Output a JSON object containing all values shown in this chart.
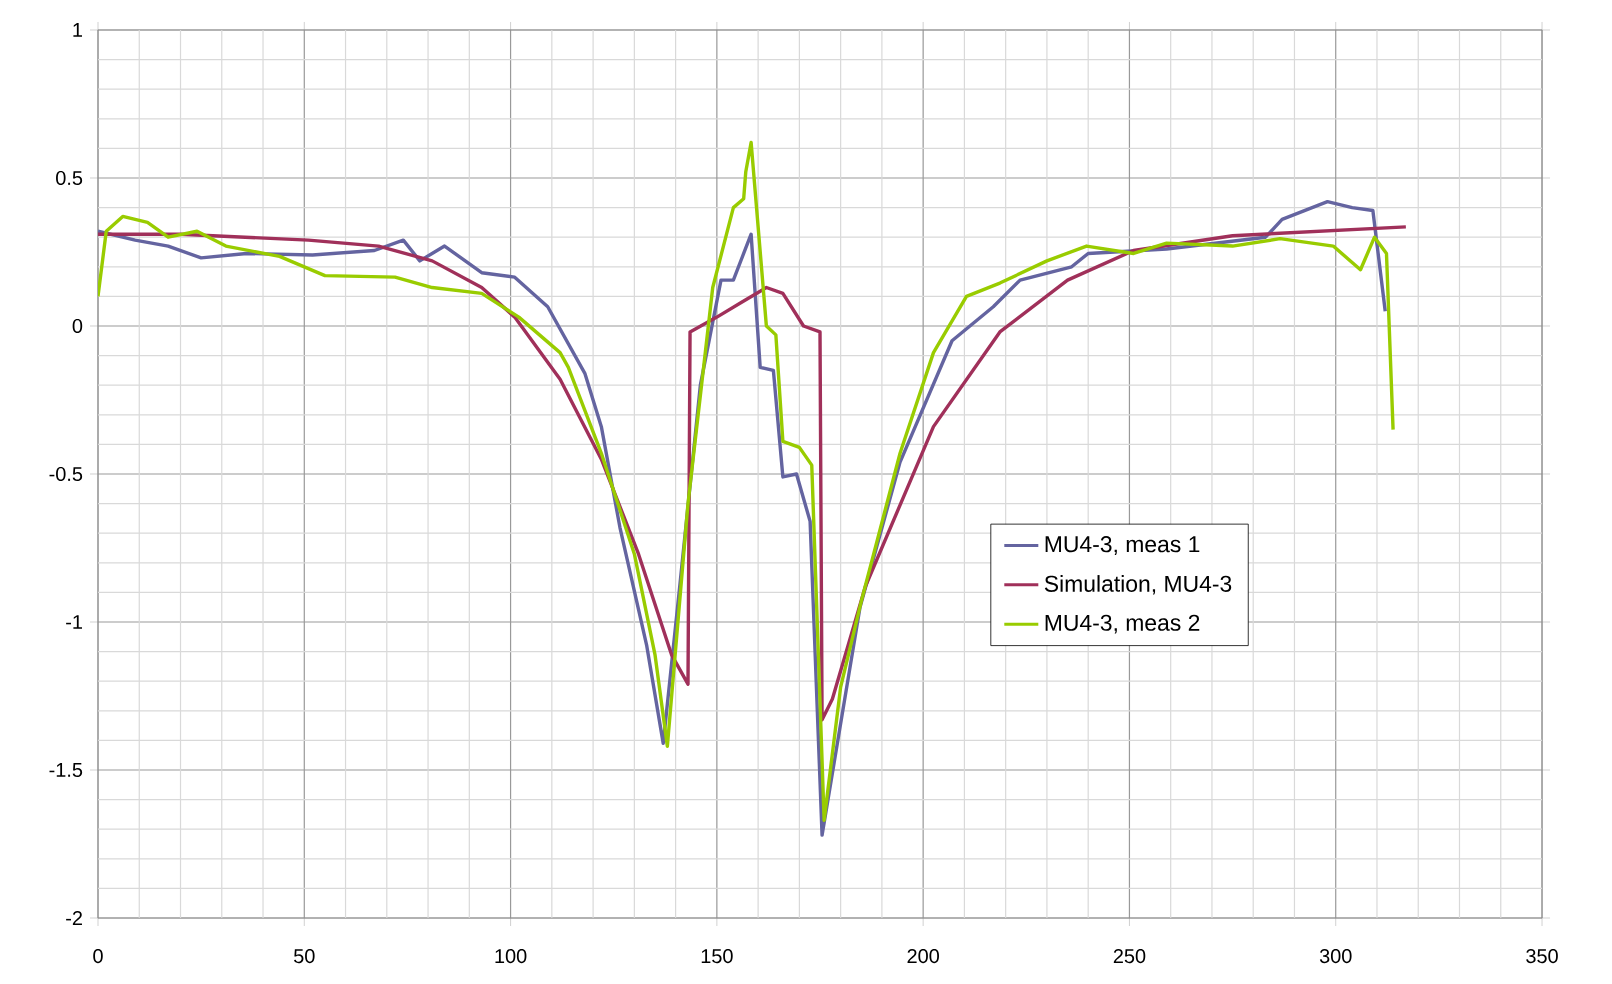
{
  "chart_data": {
    "type": "line",
    "xlim": [
      0,
      350
    ],
    "ylim": [
      -2,
      1
    ],
    "xticks": [
      0,
      {
        "value": 10,
        "label": null
      },
      {
        "value": 20,
        "label": null
      },
      {
        "value": 30,
        "label": null
      },
      {
        "value": 40,
        "label": null
      },
      50,
      {
        "value": 60,
        "label": null
      },
      {
        "value": 70,
        "label": null
      },
      {
        "value": 80,
        "label": null
      },
      {
        "value": 90,
        "label": null
      },
      100,
      {
        "value": 110,
        "label": null
      },
      {
        "value": 120,
        "label": null
      },
      {
        "value": 130,
        "label": null
      },
      {
        "value": 140,
        "label": null
      },
      150,
      {
        "value": 160,
        "label": null
      },
      {
        "value": 170,
        "label": null
      },
      {
        "value": 180,
        "label": null
      },
      {
        "value": 190,
        "label": null
      },
      200,
      {
        "value": 210,
        "label": null
      },
      {
        "value": 220,
        "label": null
      },
      {
        "value": 230,
        "label": null
      },
      {
        "value": 240,
        "label": null
      },
      250,
      {
        "value": 260,
        "label": null
      },
      {
        "value": 270,
        "label": null
      },
      {
        "value": 280,
        "label": null
      },
      {
        "value": 290,
        "label": null
      },
      300,
      {
        "value": 310,
        "label": null
      },
      {
        "value": 320,
        "label": null
      },
      {
        "value": 330,
        "label": null
      },
      {
        "value": 340,
        "label": null
      },
      350
    ],
    "yticks": [
      -2,
      {
        "value": -1.9,
        "label": null
      },
      {
        "value": -1.8,
        "label": null
      },
      {
        "value": -1.7,
        "label": null
      },
      {
        "value": -1.6,
        "label": null
      },
      -1.5,
      {
        "value": -1.4,
        "label": null
      },
      {
        "value": -1.3,
        "label": null
      },
      {
        "value": -1.2,
        "label": null
      },
      {
        "value": -1.1,
        "label": null
      },
      -1,
      {
        "value": -0.9,
        "label": null
      },
      {
        "value": -0.8,
        "label": null
      },
      {
        "value": -0.7,
        "label": null
      },
      {
        "value": -0.6,
        "label": null
      },
      -0.5,
      {
        "value": -0.4,
        "label": null
      },
      {
        "value": -0.3,
        "label": null
      },
      {
        "value": -0.2,
        "label": null
      },
      {
        "value": -0.1,
        "label": null
      },
      0,
      {
        "value": 0.1,
        "label": null
      },
      {
        "value": 0.2,
        "label": null
      },
      {
        "value": 0.3,
        "label": null
      },
      {
        "value": 0.4,
        "label": null
      },
      0.5,
      {
        "value": 0.6,
        "label": null
      },
      {
        "value": 0.7,
        "label": null
      },
      {
        "value": 0.8,
        "label": null
      },
      {
        "value": 0.9,
        "label": null
      },
      1
    ],
    "grid": true,
    "legend": "right",
    "marker": "none",
    "line_style": "solid",
    "series": [
      {
        "name": "MU4-3, meas 1",
        "color": "#6464a0",
        "x": [
          0,
          9,
          17,
          25,
          36,
          52,
          67,
          74,
          78,
          84,
          93,
          101,
          109,
          118,
          122,
          126.5,
          133,
          137,
          141,
          146,
          151,
          154,
          156.5,
          158.3,
          160.5,
          163.7,
          166,
          169.3,
          172.6,
          175.5,
          184.7,
          194.4,
          207,
          217,
          223.5,
          236,
          240,
          259,
          283,
          287,
          298,
          304,
          309,
          312
        ],
        "values": [
          0.32,
          0.29,
          0.27,
          0.23,
          0.245,
          0.24,
          0.255,
          0.29,
          0.22,
          0.27,
          0.18,
          0.165,
          0.065,
          -0.16,
          -0.34,
          -0.68,
          -1.08,
          -1.41,
          -0.88,
          -0.2,
          0.155,
          0.155,
          0.245,
          0.31,
          -0.14,
          -0.15,
          -0.51,
          -0.5,
          -0.66,
          -1.72,
          -0.95,
          -0.46,
          -0.05,
          0.065,
          0.155,
          0.2,
          0.245,
          0.26,
          0.3,
          0.36,
          0.42,
          0.4,
          0.39,
          0.05
        ]
      },
      {
        "name": "Simulation, MU4-3",
        "color": "#a0305a",
        "x": [
          0,
          20,
          51,
          68,
          81,
          93,
          101,
          112,
          122,
          131,
          139,
          143,
          143.5,
          150,
          156,
          162,
          166,
          171,
          175,
          175.5,
          178,
          186,
          202.5,
          218.6,
          235,
          251,
          275,
          317
        ],
        "values": [
          0.31,
          0.31,
          0.29,
          0.27,
          0.22,
          0.13,
          0.03,
          -0.18,
          -0.45,
          -0.77,
          -1.11,
          -1.21,
          -0.02,
          0.03,
          0.08,
          0.13,
          0.11,
          0,
          -0.02,
          -1.33,
          -1.26,
          -0.88,
          -0.34,
          -0.02,
          0.155,
          0.255,
          0.305,
          0.335
        ]
      },
      {
        "name": "MU4-3, meas 2",
        "color": "#99cc00",
        "x": [
          0,
          2,
          6,
          12,
          17,
          24,
          31,
          44,
          55,
          72,
          81,
          93,
          102,
          112,
          114,
          122,
          130,
          135,
          138,
          143,
          149,
          154,
          156.5,
          157,
          158.3,
          162,
          164.3,
          166,
          170,
          173,
          176,
          180,
          185,
          194.4,
          202.5,
          210.5,
          218.6,
          230,
          239.6,
          251,
          259,
          275,
          286.5,
          299.4,
          306,
          309.4,
          312.3,
          313.9
        ],
        "values": [
          0.1,
          0.32,
          0.37,
          0.35,
          0.3,
          0.32,
          0.27,
          0.235,
          0.17,
          0.165,
          0.13,
          0.11,
          0.03,
          -0.09,
          -0.14,
          -0.43,
          -0.77,
          -1.11,
          -1.42,
          -0.6,
          0.13,
          0.4,
          0.43,
          0.52,
          0.62,
          0,
          -0.03,
          -0.39,
          -0.41,
          -0.47,
          -1.67,
          -1.22,
          -0.93,
          -0.43,
          -0.09,
          0.1,
          0.145,
          0.22,
          0.27,
          0.245,
          0.28,
          0.27,
          0.295,
          0.27,
          0.19,
          0.3,
          0.245,
          -0.35
        ]
      }
    ]
  }
}
